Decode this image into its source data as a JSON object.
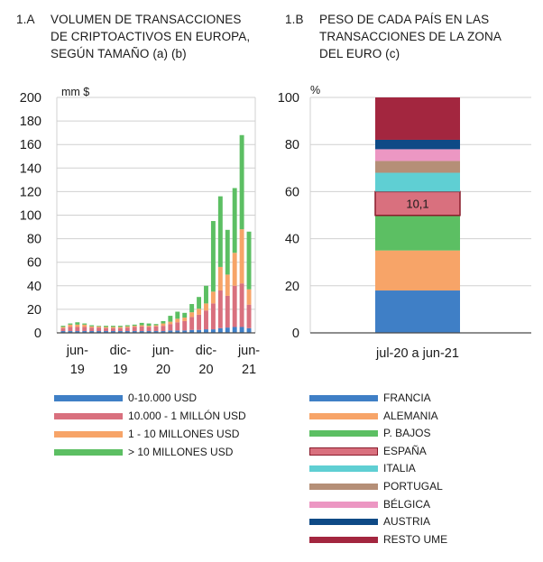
{
  "left_panel": {
    "number": "1.A",
    "title": "VOLUMEN DE TRANSACCIONES\nDE CRIPTOACTIVOS EN EUROPA,\nSEGÚN TAMAÑO (a) (b)",
    "unit": "mm $"
  },
  "right_panel": {
    "number": "1.B",
    "title": "PESO DE CADA PAÍS EN LAS\nTRANSACCIONES DE LA ZONA\nDEL EURO (c)",
    "unit": "%"
  },
  "colors": {
    "blue": "#3f7fc6",
    "red": "#d9707e",
    "orange": "#f7a468",
    "green": "#5cbf63",
    "cyan": "#5fcfd3",
    "brown": "#b58f77",
    "pink": "#ec97c3",
    "navy": "#0e4a86",
    "darkred": "#a3263f",
    "grid": "#d0d0d0",
    "axis": "#4a4a4a"
  },
  "legend_left": [
    {
      "label": "0-10.000 USD",
      "color": "#3f7fc6"
    },
    {
      "label": "10.000 - 1 MILLÓN USD",
      "color": "#d9707e"
    },
    {
      "label": "1 - 10 MILLONES USD",
      "color": "#f7a468"
    },
    {
      "label": "> 10 MILLONES USD",
      "color": "#5cbf63"
    }
  ],
  "legend_right": [
    {
      "label": "FRANCIA",
      "color": "#3f7fc6",
      "outlined": false
    },
    {
      "label": "ALEMANIA",
      "color": "#f7a468",
      "outlined": false
    },
    {
      "label": "P. BAJOS",
      "color": "#5cbf63",
      "outlined": false
    },
    {
      "label": "ESPAÑA",
      "color": "#d9707e",
      "outlined": true
    },
    {
      "label": "ITALIA",
      "color": "#5fcfd3",
      "outlined": false
    },
    {
      "label": "PORTUGAL",
      "color": "#b58f77",
      "outlined": false
    },
    {
      "label": "BÉLGICA",
      "color": "#ec97c3",
      "outlined": false
    },
    {
      "label": "AUSTRIA",
      "color": "#0e4a86",
      "outlined": false
    },
    {
      "label": "RESTO UME",
      "color": "#a3263f",
      "outlined": false
    }
  ],
  "chart_data": [
    {
      "type": "bar",
      "stacked": true,
      "title": "VOLUMEN DE TRANSACCIONES DE CRIPTOACTIVOS EN EUROPA, SEGÚN TAMAÑO (a) (b)",
      "ylabel": "mm $",
      "ylim": [
        0,
        200
      ],
      "yticks": [
        0,
        20,
        40,
        60,
        80,
        100,
        120,
        140,
        160,
        180,
        200
      ],
      "grid": true,
      "x_tick_labels": [
        {
          "line1": "jun-",
          "line2": "19",
          "index": 2
        },
        {
          "line1": "dic-",
          "line2": "19",
          "index": 8
        },
        {
          "line1": "jun-",
          "line2": "20",
          "index": 14
        },
        {
          "line1": "dic-",
          "line2": "20",
          "index": 20
        },
        {
          "line1": "jun-",
          "line2": "21",
          "index": 26
        }
      ],
      "n_periods": 27,
      "series": [
        {
          "name": "0-10.000 USD",
          "color": "#3f7fc6",
          "values": [
            1.5,
            1.5,
            1.5,
            1.5,
            1.5,
            1.5,
            1.5,
            1.5,
            1.5,
            1.5,
            1.5,
            1.5,
            1.5,
            1.5,
            1.5,
            2,
            2,
            2,
            2.5,
            2.5,
            3,
            3,
            4,
            4.5,
            5,
            5,
            4
          ]
        },
        {
          "name": "10.000 - 1 MILLÓN USD",
          "color": "#d9707e",
          "values": [
            2.5,
            3.5,
            3.5,
            3.5,
            3,
            3,
            2.5,
            2.5,
            2.5,
            3,
            3.5,
            4,
            3.5,
            4,
            4.5,
            5.5,
            7,
            8,
            11,
            13,
            16,
            22,
            32,
            27,
            35,
            37,
            20
          ]
        },
        {
          "name": "1 - 10 MILLONES USD",
          "color": "#f7a468",
          "values": [
            1,
            2,
            2,
            2,
            1,
            1,
            1,
            1,
            1,
            1,
            1,
            1,
            1,
            1,
            2,
            2,
            3,
            3,
            4,
            5,
            6,
            10,
            20,
            18,
            28,
            46,
            13
          ]
        },
        {
          "name": "> 10 MILLONES USD",
          "color": "#5cbf63",
          "values": [
            1,
            1,
            2,
            1,
            1,
            0.5,
            1,
            1,
            1,
            1,
            1,
            2,
            2,
            1,
            2,
            5,
            6,
            4,
            7,
            10,
            15,
            60,
            60,
            38,
            55,
            80,
            49
          ]
        }
      ]
    },
    {
      "type": "bar",
      "stacked": true,
      "title": "PESO DE CADA PAÍS EN LAS TRANSACCIONES DE LA ZONA DEL EURO (c)",
      "ylabel": "%",
      "ylim": [
        0,
        100
      ],
      "yticks": [
        0,
        20,
        40,
        60,
        80,
        100
      ],
      "grid": true,
      "categories": [
        "jul-20 a jun-21"
      ],
      "series": [
        {
          "name": "FRANCIA",
          "values": [
            18
          ],
          "color": "#3f7fc6"
        },
        {
          "name": "ALEMANIA",
          "values": [
            17
          ],
          "color": "#f7a468"
        },
        {
          "name": "P. BAJOS",
          "values": [
            14.9
          ],
          "color": "#5cbf63"
        },
        {
          "name": "ESPAÑA",
          "values": [
            10.1
          ],
          "color": "#d9707e",
          "label": "10,1",
          "outlined": true
        },
        {
          "name": "ITALIA",
          "values": [
            8
          ],
          "color": "#5fcfd3"
        },
        {
          "name": "PORTUGAL",
          "values": [
            5
          ],
          "color": "#b58f77"
        },
        {
          "name": "BÉLGICA",
          "values": [
            5
          ],
          "color": "#ec97c3"
        },
        {
          "name": "AUSTRIA",
          "values": [
            4
          ],
          "color": "#0e4a86"
        },
        {
          "name": "RESTO UME",
          "values": [
            18
          ],
          "color": "#a3263f"
        }
      ]
    }
  ]
}
